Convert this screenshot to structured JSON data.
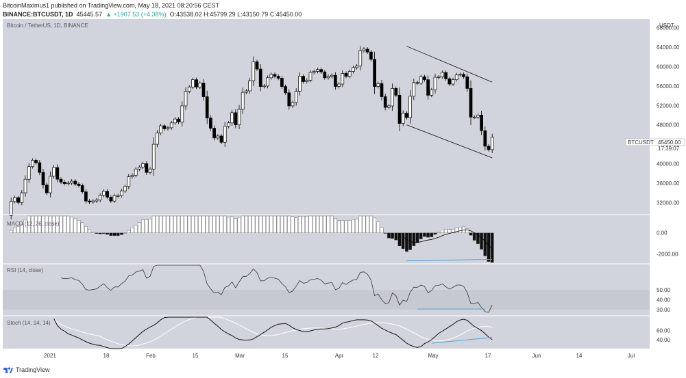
{
  "header": {
    "line1": "BitcoinMaximus1 published on TradingView.com, May 18, 2021 08:20:56 CEST",
    "symbol": "BINANCE:BTCUSDT, 1D",
    "price": "45445.57",
    "change": "▲ +1907.53 (+4.38%)",
    "ohlc": "O:43538.02 H:45799.29 L:43150.79 C:45450.00"
  },
  "main_label": "Bitcoin / TetherUS, 1D, BINANCE",
  "currency": "USDT",
  "price_tag": {
    "symbol": "BTCUSDT",
    "price": "45450.00",
    "countdown": "17:39:07"
  },
  "macd_label": "MACD (12, 26, close)",
  "rsi_label": "RSI (14, close)",
  "stoch_label": "Stoch (14, 14, 14)",
  "footer_brand": "TradingView",
  "colors": {
    "background": "#d1d4dc",
    "candle": "#000000",
    "divergence": "#4aa8d8",
    "pane_bg": "#ffffff"
  },
  "chart_data": {
    "type": "candlestick",
    "title": "Bitcoin / TetherUS, 1D, BINANCE",
    "x_ticks": [
      "2021",
      "18",
      "Feb",
      "15",
      "Mar",
      "15",
      "Apr",
      "12",
      "May",
      "17",
      "Jun",
      "14",
      "Jul"
    ],
    "y_ticks": [
      32000,
      36000,
      40000,
      44000,
      48000,
      52000,
      56000,
      60000,
      64000,
      68000
    ],
    "ylim": [
      29500,
      69500
    ],
    "ylabel": "USDT",
    "closes": [
      29300,
      32200,
      33000,
      32000,
      34000,
      36800,
      39400,
      40700,
      40200,
      38200,
      35600,
      34000,
      37400,
      39200,
      36800,
      36200,
      35900,
      36000,
      36400,
      35800,
      35500,
      34200,
      32300,
      32100,
      32300,
      32500,
      33500,
      34300,
      33100,
      32300,
      33400,
      33400,
      34400,
      35300,
      37300,
      37600,
      38900,
      39300,
      40000,
      38200,
      38900,
      44000,
      46300,
      47800,
      47200,
      47400,
      48400,
      49200,
      48600,
      51900,
      54900,
      55800,
      57300,
      55800,
      56600,
      53800,
      49400,
      47300,
      45300,
      45700,
      44400,
      47700,
      48400,
      50500,
      48000,
      51200,
      54700,
      55000,
      57100,
      61000,
      59500,
      55900,
      56000,
      57700,
      58400,
      58000,
      57600,
      55900,
      54600,
      51900,
      52600,
      54900,
      58000,
      56900,
      57200,
      58800,
      59000,
      59400,
      58900,
      57700,
      58000,
      58200,
      55900,
      56400,
      58600,
      58000,
      59000,
      59800,
      60100,
      63300,
      63600,
      63000,
      61500,
      55900,
      56500,
      53800,
      51600,
      51900,
      55500,
      54100,
      48300,
      50400,
      49500,
      53900,
      56700,
      56600,
      57900,
      57300,
      54100,
      55200,
      57800,
      57900,
      58800,
      57500,
      56400,
      57300,
      58300,
      58400,
      57900,
      55500,
      49600,
      49600,
      50000,
      46800,
      43600,
      42900,
      45450
    ],
    "channel": {
      "upper": [
        [
          112,
          64200
        ],
        [
          136,
          56800
        ]
      ],
      "lower": [
        [
          112,
          48000
        ],
        [
          136,
          41200
        ]
      ]
    },
    "macd": {
      "ylim": [
        -2800,
        1600
      ],
      "ticks": [
        0,
        -2000
      ]
    },
    "rsi": {
      "ylim": [
        25,
        75
      ],
      "ticks": [
        50,
        40,
        30
      ]
    },
    "stoch": {
      "ylim": [
        20,
        90
      ],
      "ticks": [
        60,
        40
      ]
    }
  }
}
